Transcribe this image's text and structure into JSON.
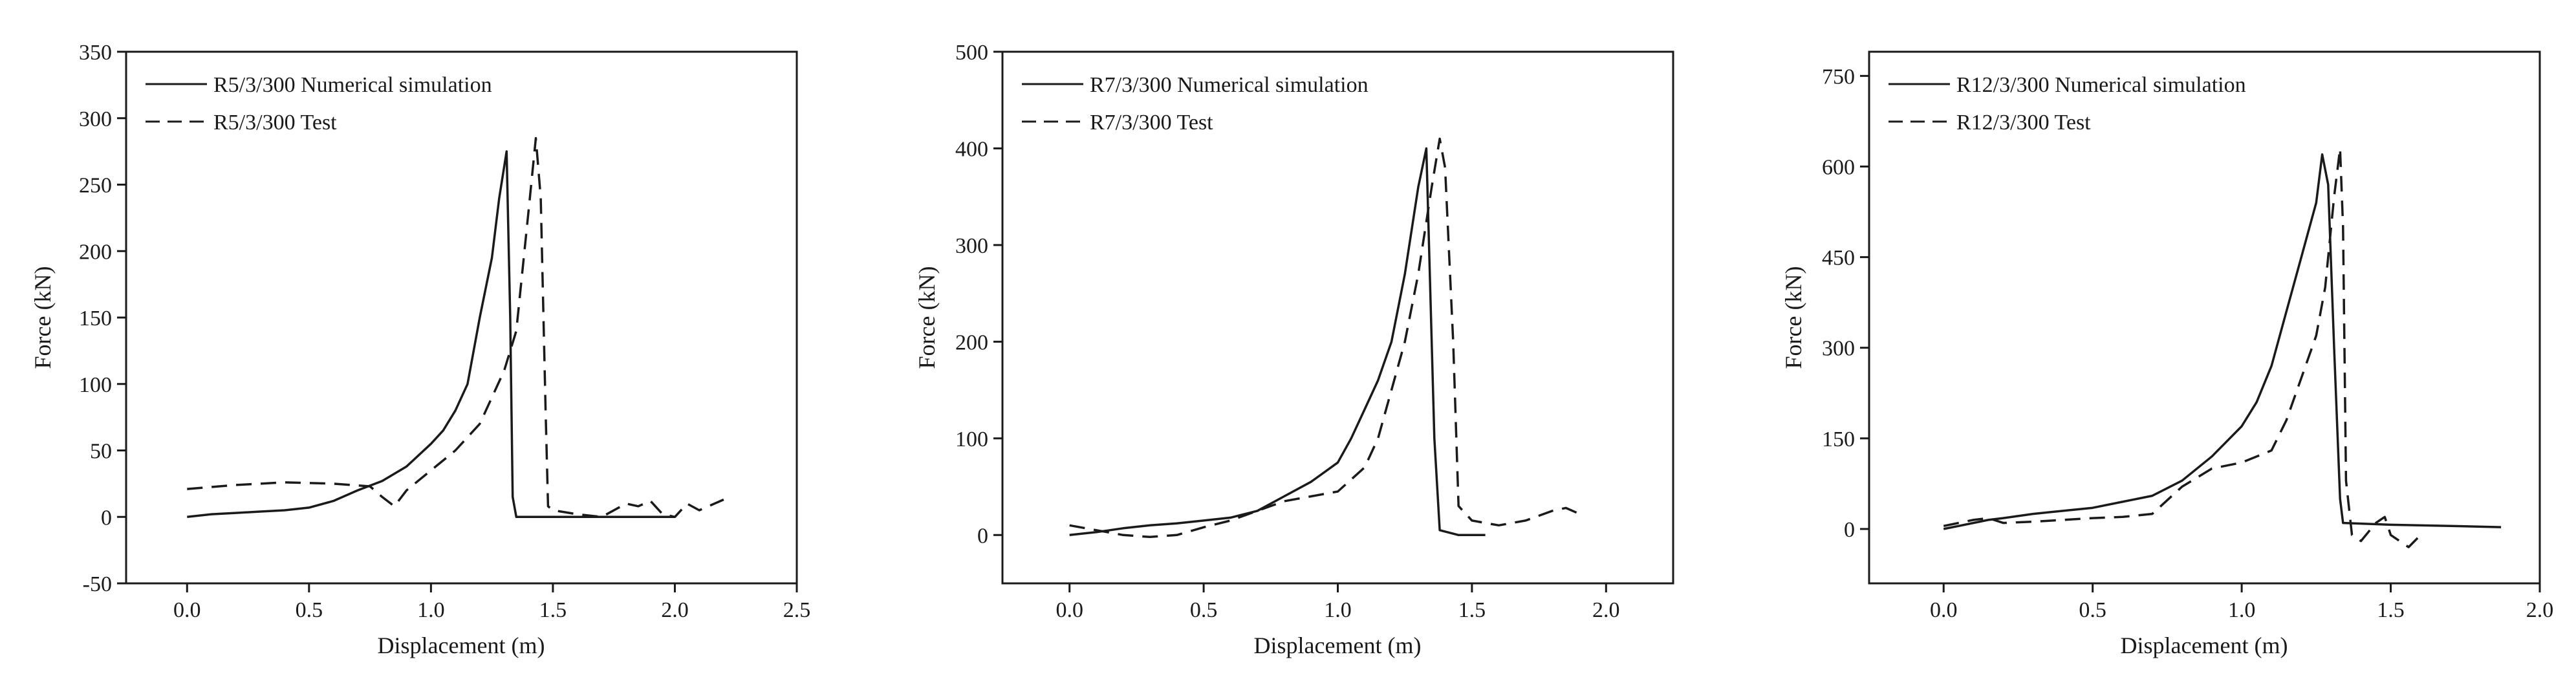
{
  "figure": {
    "background": "#ffffff",
    "line_color": "#1a1a1a"
  },
  "chart_data": [
    {
      "type": "line",
      "xlabel": "Displacement (m)",
      "ylabel": "Force (kN)",
      "xlim": [
        -0.25,
        2.5
      ],
      "ylim": [
        -50,
        350
      ],
      "xticks": [
        0.0,
        0.5,
        1.0,
        1.5,
        2.0,
        2.5
      ],
      "xtick_labels": [
        "0.0",
        "0.5",
        "1.0",
        "1.5",
        "2.0",
        "2.5"
      ],
      "yticks": [
        -50,
        0,
        50,
        100,
        150,
        200,
        250,
        300,
        350
      ],
      "ytick_labels": [
        "-50",
        "0",
        "50",
        "100",
        "150",
        "200",
        "250",
        "300",
        "350"
      ],
      "legend_position": "top-left",
      "series": [
        {
          "name": "R5/3/300 Numerical simulation",
          "style": "solid",
          "x": [
            0.0,
            0.1,
            0.2,
            0.3,
            0.4,
            0.5,
            0.6,
            0.7,
            0.8,
            0.9,
            1.0,
            1.05,
            1.1,
            1.15,
            1.2,
            1.25,
            1.28,
            1.31,
            1.325,
            1.335,
            1.35,
            1.45,
            1.6,
            1.8,
            2.0
          ],
          "y": [
            0,
            2,
            3,
            4,
            5,
            7,
            12,
            20,
            27,
            38,
            55,
            65,
            80,
            100,
            150,
            195,
            240,
            275,
            150,
            15,
            0,
            0,
            0,
            0,
            0
          ]
        },
        {
          "name": "R5/3/300 Test",
          "style": "dashed",
          "x": [
            0.0,
            0.2,
            0.4,
            0.6,
            0.75,
            0.8,
            0.85,
            0.9,
            1.0,
            1.1,
            1.2,
            1.3,
            1.35,
            1.4,
            1.43,
            1.45,
            1.47,
            1.48,
            1.5,
            1.6,
            1.7,
            1.8,
            1.85,
            1.9,
            1.95,
            2.0,
            2.05,
            2.1,
            2.2
          ],
          "y": [
            21,
            24,
            26,
            25,
            23,
            15,
            8,
            20,
            35,
            50,
            70,
            110,
            140,
            230,
            285,
            240,
            80,
            8,
            5,
            2,
            0,
            10,
            8,
            12,
            2,
            0,
            10,
            5,
            13
          ]
        }
      ]
    },
    {
      "type": "line",
      "xlabel": "Displacement (m)",
      "ylabel": "Force (kN)",
      "xlim": [
        -0.25,
        2.25
      ],
      "ylim": [
        -50,
        500
      ],
      "xticks": [
        0.0,
        0.5,
        1.0,
        1.5,
        2.0
      ],
      "xtick_labels": [
        "0.0",
        "0.5",
        "1.0",
        "1.5",
        "2.0"
      ],
      "yticks": [
        0,
        100,
        200,
        300,
        400,
        500
      ],
      "ytick_labels": [
        "0",
        "100",
        "200",
        "300",
        "400",
        "500"
      ],
      "legend_position": "top-left",
      "series": [
        {
          "name": "R7/3/300 Numerical simulation",
          "style": "solid",
          "x": [
            0.0,
            0.1,
            0.2,
            0.3,
            0.4,
            0.5,
            0.6,
            0.7,
            0.8,
            0.9,
            1.0,
            1.05,
            1.1,
            1.15,
            1.2,
            1.25,
            1.3,
            1.33,
            1.345,
            1.36,
            1.38,
            1.45,
            1.55
          ],
          "y": [
            0,
            3,
            7,
            10,
            12,
            15,
            18,
            25,
            40,
            55,
            75,
            100,
            130,
            160,
            200,
            270,
            360,
            400,
            250,
            100,
            5,
            0,
            0
          ]
        },
        {
          "name": "R7/3/300 Test",
          "style": "dashed",
          "x": [
            0.0,
            0.1,
            0.2,
            0.3,
            0.4,
            0.5,
            0.6,
            0.7,
            0.8,
            0.9,
            1.0,
            1.1,
            1.15,
            1.2,
            1.25,
            1.3,
            1.35,
            1.38,
            1.4,
            1.43,
            1.45,
            1.5,
            1.6,
            1.7,
            1.8,
            1.85,
            1.9
          ],
          "y": [
            10,
            5,
            0,
            -2,
            0,
            8,
            15,
            25,
            35,
            40,
            45,
            70,
            100,
            150,
            200,
            270,
            360,
            410,
            380,
            200,
            30,
            15,
            10,
            15,
            25,
            28,
            22
          ]
        }
      ]
    },
    {
      "type": "line",
      "xlabel": "Displacement (m)",
      "ylabel": "Force (kN)",
      "xlim": [
        -0.25,
        2.0
      ],
      "ylim": [
        -90,
        790
      ],
      "xticks": [
        0.0,
        0.5,
        1.0,
        1.5,
        2.0
      ],
      "xtick_labels": [
        "0.0",
        "0.5",
        "1.0",
        "1.5",
        "2.0"
      ],
      "yticks": [
        0,
        150,
        300,
        450,
        600,
        750
      ],
      "ytick_labels": [
        "0",
        "150",
        "300",
        "450",
        "600",
        "750"
      ],
      "legend_position": "top-left",
      "series": [
        {
          "name": "R12/3/300 Numerical simulation",
          "style": "solid",
          "x": [
            0.0,
            0.05,
            0.1,
            0.15,
            0.2,
            0.3,
            0.4,
            0.5,
            0.6,
            0.7,
            0.8,
            0.9,
            1.0,
            1.05,
            1.1,
            1.15,
            1.2,
            1.25,
            1.27,
            1.29,
            1.31,
            1.33,
            1.34,
            1.5,
            1.7,
            1.87
          ],
          "y": [
            0,
            5,
            10,
            15,
            18,
            25,
            30,
            35,
            45,
            55,
            80,
            120,
            170,
            210,
            270,
            360,
            450,
            540,
            620,
            570,
            300,
            50,
            10,
            7,
            5,
            3
          ]
        },
        {
          "name": "R12/3/300 Test",
          "style": "dashed",
          "x": [
            0.0,
            0.05,
            0.1,
            0.15,
            0.2,
            0.3,
            0.4,
            0.5,
            0.6,
            0.7,
            0.8,
            0.9,
            1.0,
            1.1,
            1.15,
            1.2,
            1.25,
            1.28,
            1.31,
            1.33,
            1.34,
            1.35,
            1.37,
            1.4,
            1.45,
            1.48,
            1.5,
            1.53,
            1.56,
            1.6
          ],
          "y": [
            5,
            10,
            15,
            18,
            10,
            12,
            15,
            18,
            20,
            25,
            70,
            100,
            110,
            130,
            180,
            250,
            320,
            400,
            550,
            630,
            500,
            80,
            -10,
            -20,
            10,
            20,
            -10,
            -20,
            -30,
            -10
          ]
        }
      ]
    }
  ]
}
